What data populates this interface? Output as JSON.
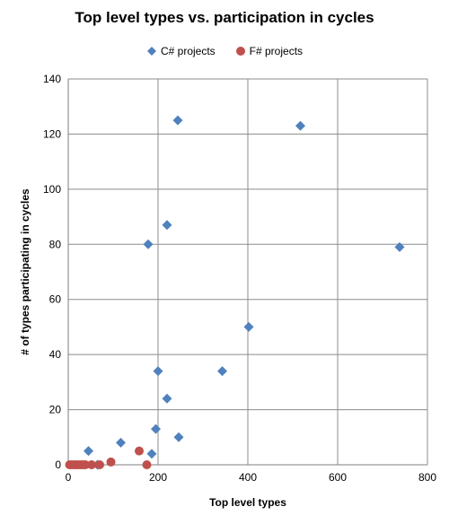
{
  "chart_data": {
    "type": "scatter",
    "title": "Top level types vs. participation in cycles",
    "xlabel": "Top level types",
    "ylabel": "# of types participating in cycles",
    "xlim": [
      0,
      800
    ],
    "ylim": [
      0,
      140
    ],
    "xticks": [
      "0",
      "200",
      "400",
      "600",
      "800"
    ],
    "yticks": [
      "0",
      "20",
      "40",
      "60",
      "80",
      "100",
      "120",
      "140"
    ],
    "grid": true,
    "legend_position": "top",
    "series": [
      {
        "name": "C# projects",
        "marker": "diamond",
        "color": "#4F81BD",
        "points": [
          {
            "x": 45,
            "y": 5
          },
          {
            "x": 65,
            "y": 0
          },
          {
            "x": 117,
            "y": 8
          },
          {
            "x": 178,
            "y": 80
          },
          {
            "x": 186,
            "y": 4
          },
          {
            "x": 195,
            "y": 13
          },
          {
            "x": 200,
            "y": 34
          },
          {
            "x": 220,
            "y": 24
          },
          {
            "x": 220,
            "y": 87
          },
          {
            "x": 244,
            "y": 125
          },
          {
            "x": 246,
            "y": 10
          },
          {
            "x": 343,
            "y": 34
          },
          {
            "x": 402,
            "y": 50
          },
          {
            "x": 517,
            "y": 123
          },
          {
            "x": 738,
            "y": 79
          }
        ]
      },
      {
        "name": "F# projects",
        "marker": "circle",
        "color": "#C0504D",
        "points": [
          {
            "x": 3,
            "y": 0
          },
          {
            "x": 8,
            "y": 0
          },
          {
            "x": 13,
            "y": 0
          },
          {
            "x": 18,
            "y": 0
          },
          {
            "x": 22,
            "y": 0
          },
          {
            "x": 28,
            "y": 0
          },
          {
            "x": 33,
            "y": 0
          },
          {
            "x": 38,
            "y": 0
          },
          {
            "x": 52,
            "y": 0
          },
          {
            "x": 70,
            "y": 0
          },
          {
            "x": 95,
            "y": 1
          },
          {
            "x": 158,
            "y": 5
          },
          {
            "x": 175,
            "y": 0
          }
        ]
      }
    ]
  }
}
